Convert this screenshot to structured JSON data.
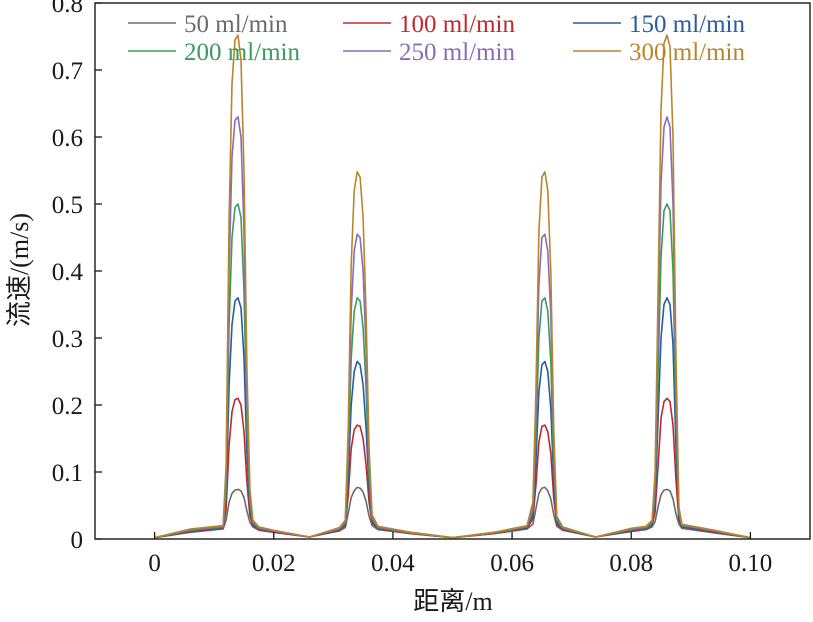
{
  "chart_data": {
    "type": "line",
    "title": "",
    "xlabel": "距离/m",
    "ylabel": "流速/(m/s)",
    "xlim": [
      -0.01,
      0.11
    ],
    "ylim": [
      0,
      0.8
    ],
    "xticks": [
      0,
      0.02,
      0.04,
      0.06,
      0.08,
      0.1
    ],
    "xtick_labels": [
      "0",
      "0.02",
      "0.04",
      "0.06",
      "0.08",
      "0.10"
    ],
    "yticks": [
      0,
      0.1,
      0.2,
      0.3,
      0.4,
      0.5,
      0.6,
      0.7,
      0.8
    ],
    "ytick_labels": [
      "0",
      "0.1",
      "0.2",
      "0.3",
      "0.4",
      "0.5",
      "0.6",
      "0.7",
      "0.8"
    ],
    "grid": false,
    "legend_position": "top",
    "x": [
      0,
      0.006,
      0.0115,
      0.012,
      0.0125,
      0.013,
      0.0135,
      0.014,
      0.0145,
      0.015,
      0.0155,
      0.016,
      0.0165,
      0.0175,
      0.02,
      0.026,
      0.031,
      0.032,
      0.0325,
      0.033,
      0.0335,
      0.034,
      0.0345,
      0.035,
      0.0355,
      0.036,
      0.0365,
      0.0375,
      0.043,
      0.05,
      0.057,
      0.0625,
      0.0635,
      0.064,
      0.0645,
      0.065,
      0.0655,
      0.066,
      0.0665,
      0.067,
      0.0675,
      0.0685,
      0.074,
      0.08,
      0.0825,
      0.0835,
      0.084,
      0.0845,
      0.085,
      0.0855,
      0.086,
      0.0865,
      0.087,
      0.0875,
      0.088,
      0.0885,
      0.094,
      0.1
    ],
    "series": [
      {
        "name": "50 ml/min",
        "color": "#6b6b6b",
        "values": [
          0.002,
          0.01,
          0.015,
          0.028,
          0.055,
          0.068,
          0.073,
          0.074,
          0.072,
          0.062,
          0.042,
          0.025,
          0.018,
          0.013,
          0.01,
          0.003,
          0.012,
          0.017,
          0.038,
          0.062,
          0.072,
          0.077,
          0.076,
          0.07,
          0.056,
          0.034,
          0.02,
          0.014,
          0.008,
          0.002,
          0.008,
          0.015,
          0.022,
          0.045,
          0.068,
          0.076,
          0.077,
          0.072,
          0.06,
          0.036,
          0.019,
          0.013,
          0.003,
          0.011,
          0.014,
          0.018,
          0.026,
          0.048,
          0.066,
          0.073,
          0.074,
          0.072,
          0.06,
          0.038,
          0.022,
          0.016,
          0.009,
          0.002
        ]
      },
      {
        "name": "100 ml/min",
        "color": "#c0282e",
        "values": [
          0.002,
          0.011,
          0.016,
          0.045,
          0.14,
          0.19,
          0.208,
          0.21,
          0.2,
          0.16,
          0.085,
          0.035,
          0.02,
          0.014,
          0.01,
          0.003,
          0.013,
          0.02,
          0.065,
          0.135,
          0.163,
          0.17,
          0.168,
          0.15,
          0.11,
          0.055,
          0.024,
          0.015,
          0.008,
          0.002,
          0.008,
          0.016,
          0.03,
          0.08,
          0.145,
          0.168,
          0.17,
          0.16,
          0.128,
          0.06,
          0.022,
          0.014,
          0.003,
          0.012,
          0.015,
          0.02,
          0.04,
          0.11,
          0.18,
          0.205,
          0.21,
          0.205,
          0.17,
          0.09,
          0.028,
          0.018,
          0.01,
          0.002
        ]
      },
      {
        "name": "150 ml/min",
        "color": "#2a5aa0",
        "values": [
          0.002,
          0.012,
          0.017,
          0.06,
          0.23,
          0.32,
          0.355,
          0.36,
          0.345,
          0.27,
          0.13,
          0.045,
          0.022,
          0.015,
          0.011,
          0.003,
          0.014,
          0.022,
          0.09,
          0.2,
          0.25,
          0.265,
          0.26,
          0.23,
          0.165,
          0.075,
          0.027,
          0.016,
          0.009,
          0.002,
          0.009,
          0.017,
          0.036,
          0.115,
          0.22,
          0.26,
          0.265,
          0.25,
          0.195,
          0.085,
          0.025,
          0.015,
          0.003,
          0.013,
          0.016,
          0.022,
          0.055,
          0.18,
          0.3,
          0.35,
          0.36,
          0.35,
          0.29,
          0.14,
          0.033,
          0.019,
          0.011,
          0.002
        ]
      },
      {
        "name": "200 ml/min",
        "color": "#3a9b5c",
        "values": [
          0.002,
          0.013,
          0.018,
          0.075,
          0.32,
          0.45,
          0.495,
          0.5,
          0.48,
          0.37,
          0.175,
          0.055,
          0.024,
          0.016,
          0.012,
          0.003,
          0.015,
          0.024,
          0.115,
          0.27,
          0.34,
          0.36,
          0.355,
          0.315,
          0.225,
          0.095,
          0.03,
          0.017,
          0.009,
          0.002,
          0.009,
          0.018,
          0.042,
          0.15,
          0.3,
          0.355,
          0.36,
          0.34,
          0.265,
          0.11,
          0.028,
          0.016,
          0.003,
          0.014,
          0.017,
          0.024,
          0.07,
          0.25,
          0.42,
          0.49,
          0.5,
          0.49,
          0.4,
          0.19,
          0.038,
          0.02,
          0.012,
          0.002
        ]
      },
      {
        "name": "250 ml/min",
        "color": "#8a6bb8",
        "values": [
          0.002,
          0.014,
          0.019,
          0.09,
          0.4,
          0.57,
          0.625,
          0.63,
          0.6,
          0.46,
          0.215,
          0.065,
          0.026,
          0.017,
          0.012,
          0.003,
          0.016,
          0.026,
          0.14,
          0.34,
          0.43,
          0.455,
          0.45,
          0.4,
          0.28,
          0.115,
          0.033,
          0.018,
          0.01,
          0.002,
          0.01,
          0.019,
          0.048,
          0.185,
          0.38,
          0.45,
          0.455,
          0.43,
          0.335,
          0.135,
          0.031,
          0.017,
          0.003,
          0.015,
          0.018,
          0.026,
          0.085,
          0.31,
          0.53,
          0.615,
          0.63,
          0.615,
          0.5,
          0.235,
          0.043,
          0.021,
          0.012,
          0.002
        ]
      },
      {
        "name": "300 ml/min",
        "color": "#b8862a",
        "values": [
          0.002,
          0.015,
          0.02,
          0.11,
          0.48,
          0.68,
          0.745,
          0.752,
          0.715,
          0.55,
          0.255,
          0.075,
          0.028,
          0.018,
          0.013,
          0.003,
          0.017,
          0.028,
          0.165,
          0.41,
          0.52,
          0.548,
          0.54,
          0.48,
          0.335,
          0.135,
          0.036,
          0.019,
          0.01,
          0.002,
          0.01,
          0.02,
          0.055,
          0.22,
          0.46,
          0.54,
          0.548,
          0.52,
          0.4,
          0.16,
          0.034,
          0.018,
          0.003,
          0.016,
          0.019,
          0.028,
          0.1,
          0.37,
          0.64,
          0.74,
          0.752,
          0.735,
          0.6,
          0.28,
          0.048,
          0.022,
          0.013,
          0.002
        ]
      }
    ]
  }
}
